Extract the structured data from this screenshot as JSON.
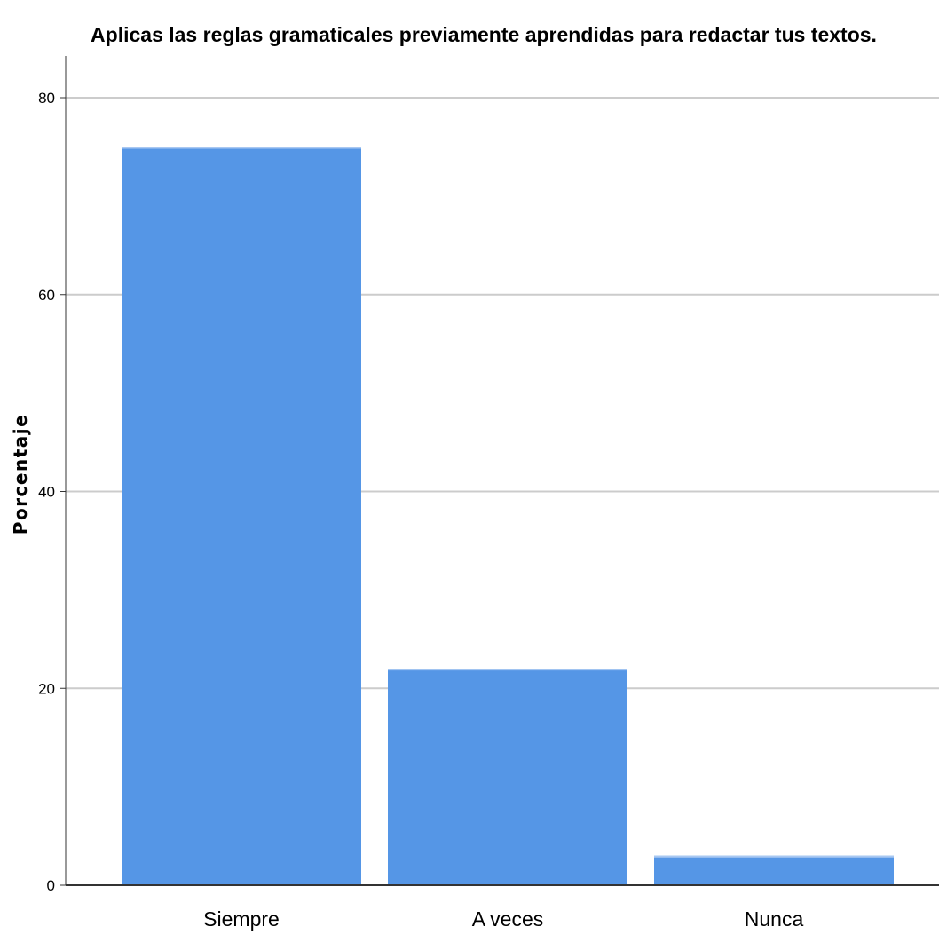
{
  "chart_data": {
    "type": "bar",
    "title": "Aplicas las reglas gramaticales previamente aprendidas para redactar tus textos.",
    "xlabel": "",
    "ylabel": "Porcentaje",
    "categories": [
      "Siempre",
      "A veces",
      "Nunca"
    ],
    "values": [
      75,
      22,
      3
    ],
    "ylim": [
      0,
      84
    ],
    "yticks": [
      0,
      20,
      40,
      60,
      80
    ],
    "grid": true,
    "legend": "none",
    "colors": {
      "bar": "#5596e6",
      "grid": "#cccccc",
      "axis": "#333333"
    }
  }
}
